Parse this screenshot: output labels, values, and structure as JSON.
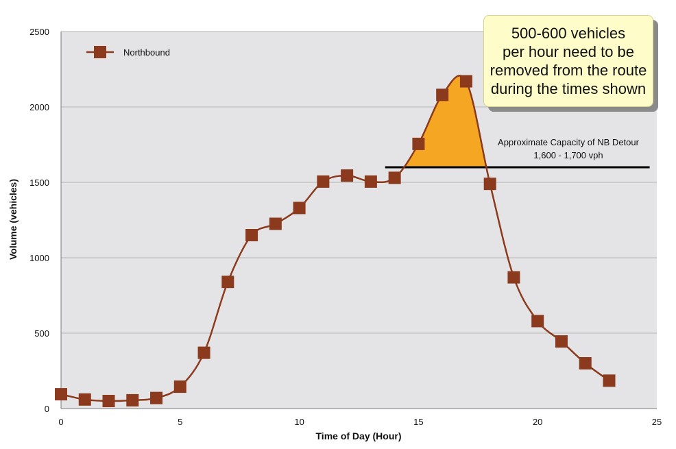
{
  "chart_data": {
    "type": "line",
    "xlabel": "Time of Day (Hour)",
    "ylabel": "Volume (vehicles)",
    "xlim": [
      0,
      25
    ],
    "ylim": [
      0,
      2500
    ],
    "xticks": [
      "0",
      "5",
      "10",
      "15",
      "20",
      "25"
    ],
    "yticks": [
      "0",
      "500",
      "1000",
      "1500",
      "2000",
      "2500"
    ],
    "grid": "horizontal",
    "legend_position": "top-left",
    "series": [
      {
        "name": "Northbound",
        "color": "#8b3a1e",
        "x": [
          0,
          1,
          2,
          3,
          4,
          5,
          6,
          7,
          8,
          9,
          10,
          11,
          12,
          13,
          14,
          15,
          16,
          17,
          18,
          19,
          20,
          21,
          22,
          23
        ],
        "values": [
          95,
          60,
          50,
          55,
          70,
          145,
          370,
          840,
          1150,
          1225,
          1330,
          1505,
          1545,
          1505,
          1530,
          1755,
          2080,
          2170,
          1490,
          870,
          580,
          445,
          300,
          185
        ]
      }
    ],
    "capacity_line": {
      "value": 1600,
      "x_range": [
        13.6,
        24.7
      ],
      "label_line1": "Approximate Capacity of NB Detour",
      "label_line2": "1,600 - 1,700 vph"
    },
    "highlight_color": "#f5a623",
    "callout_text": "500-600 vehicles\nper hour need to be\nremoved from the route\nduring the times shown"
  }
}
